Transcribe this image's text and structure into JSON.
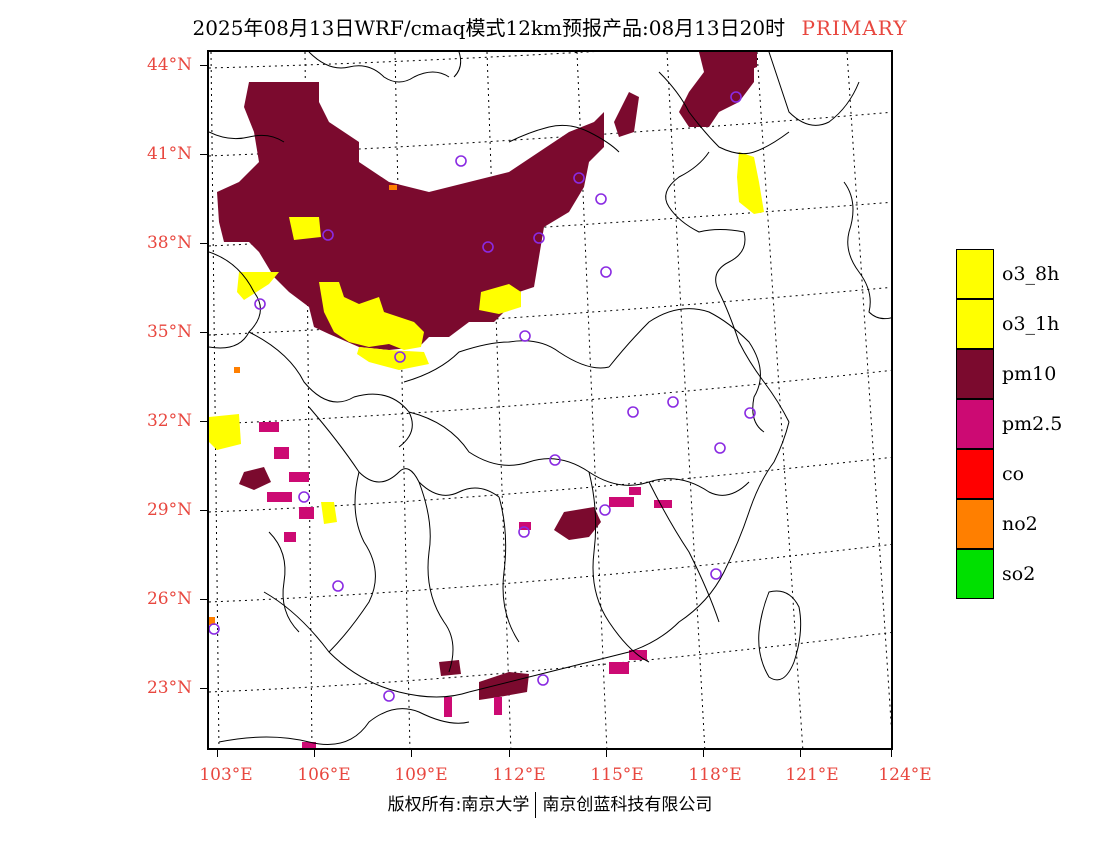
{
  "header": {
    "title": "2025年08月13日WRF/cmaq模式12km预报产品:08月13日20时",
    "tag": "PRIMARY"
  },
  "axes": {
    "lat_labels": [
      "44°N",
      "41°N",
      "38°N",
      "35°N",
      "32°N",
      "29°N",
      "26°N",
      "23°N"
    ],
    "lon_labels": [
      "103°E",
      "106°E",
      "109°E",
      "112°E",
      "115°E",
      "118°E",
      "121°E",
      "124°E"
    ]
  },
  "legend": {
    "items": [
      {
        "label": "o3_8h",
        "color": "#ffff00"
      },
      {
        "label": "o3_1h",
        "color": "#ffff00"
      },
      {
        "label": "pm10",
        "color": "#7b0a2e"
      },
      {
        "label": "pm2.5",
        "color": "#cc0a73"
      },
      {
        "label": "co",
        "color": "#ff0000"
      },
      {
        "label": "no2",
        "color": "#ff7f00"
      },
      {
        "label": "so2",
        "color": "#00e000"
      }
    ]
  },
  "footer": {
    "copyright": "版权所有:南京大学",
    "company": "南京创蓝科技有限公司"
  },
  "colors": {
    "accent": "#e8473f",
    "pm10": "#7b0a2e",
    "pm25": "#cc0a73",
    "o3": "#ffff00",
    "no2": "#ff7f00",
    "station": "#8a2be2"
  }
}
